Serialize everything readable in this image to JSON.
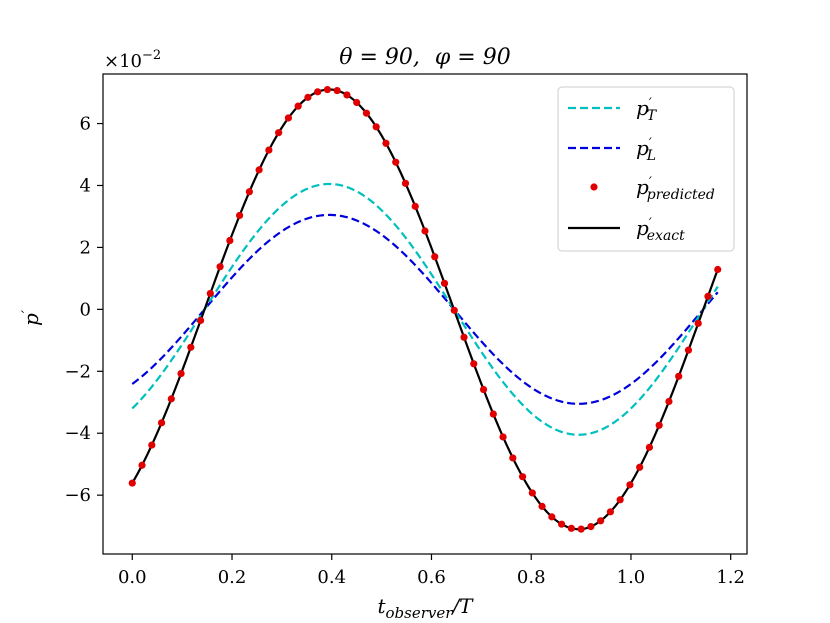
{
  "chart_data": {
    "type": "line",
    "title": "θ = 90, φ = 90",
    "title_parts": {
      "theta_label": "θ = 90,",
      "phi_label": "φ = 90"
    },
    "xlabel": {
      "base": "t",
      "sub": "observer",
      "suffix": "/T"
    },
    "ylabel": {
      "base": "p",
      "prime": "′"
    },
    "xlim": [
      -0.0587,
      1.2327
    ],
    "ylim": [
      -7.9,
      7.6
    ],
    "y_scale_label": {
      "prefix": "×10",
      "exp": "−2"
    },
    "x_ticks": [
      0.0,
      0.2,
      0.4,
      0.6,
      0.8,
      1.0,
      1.2
    ],
    "x_tick_labels": [
      "0.0",
      "0.2",
      "0.4",
      "0.6",
      "0.8",
      "1.0",
      "1.2"
    ],
    "y_ticks": [
      -6,
      -4,
      -2,
      0,
      2,
      4,
      6
    ],
    "y_tick_labels": [
      "−6",
      "−4",
      "−2",
      "0",
      "2",
      "4",
      "6"
    ],
    "grid": false,
    "legend_position": "top-right",
    "x_range": [
      0.0,
      1.174
    ],
    "num_points": 61,
    "period": 1.0,
    "series": [
      {
        "key": "pT",
        "name": "p′_T",
        "legend_sub": "T",
        "color": "#00bfbf",
        "style": "dashed",
        "amplitude": 4.05,
        "peak_x": 0.395
      },
      {
        "key": "pL",
        "name": "p′_L",
        "legend_sub": "L",
        "color": "#0000dd",
        "style": "dashed",
        "amplitude": 3.05,
        "peak_x": 0.395
      },
      {
        "key": "pPred",
        "name": "p′_predicted",
        "legend_sub": "predicted",
        "color": "#e00000",
        "style": "markers",
        "amplitude": 7.1,
        "peak_x": 0.395
      },
      {
        "key": "pExact",
        "name": "p′_exact",
        "legend_sub": "exact",
        "color": "#000000",
        "style": "solid",
        "amplitude": 7.1,
        "peak_x": 0.395
      }
    ]
  }
}
